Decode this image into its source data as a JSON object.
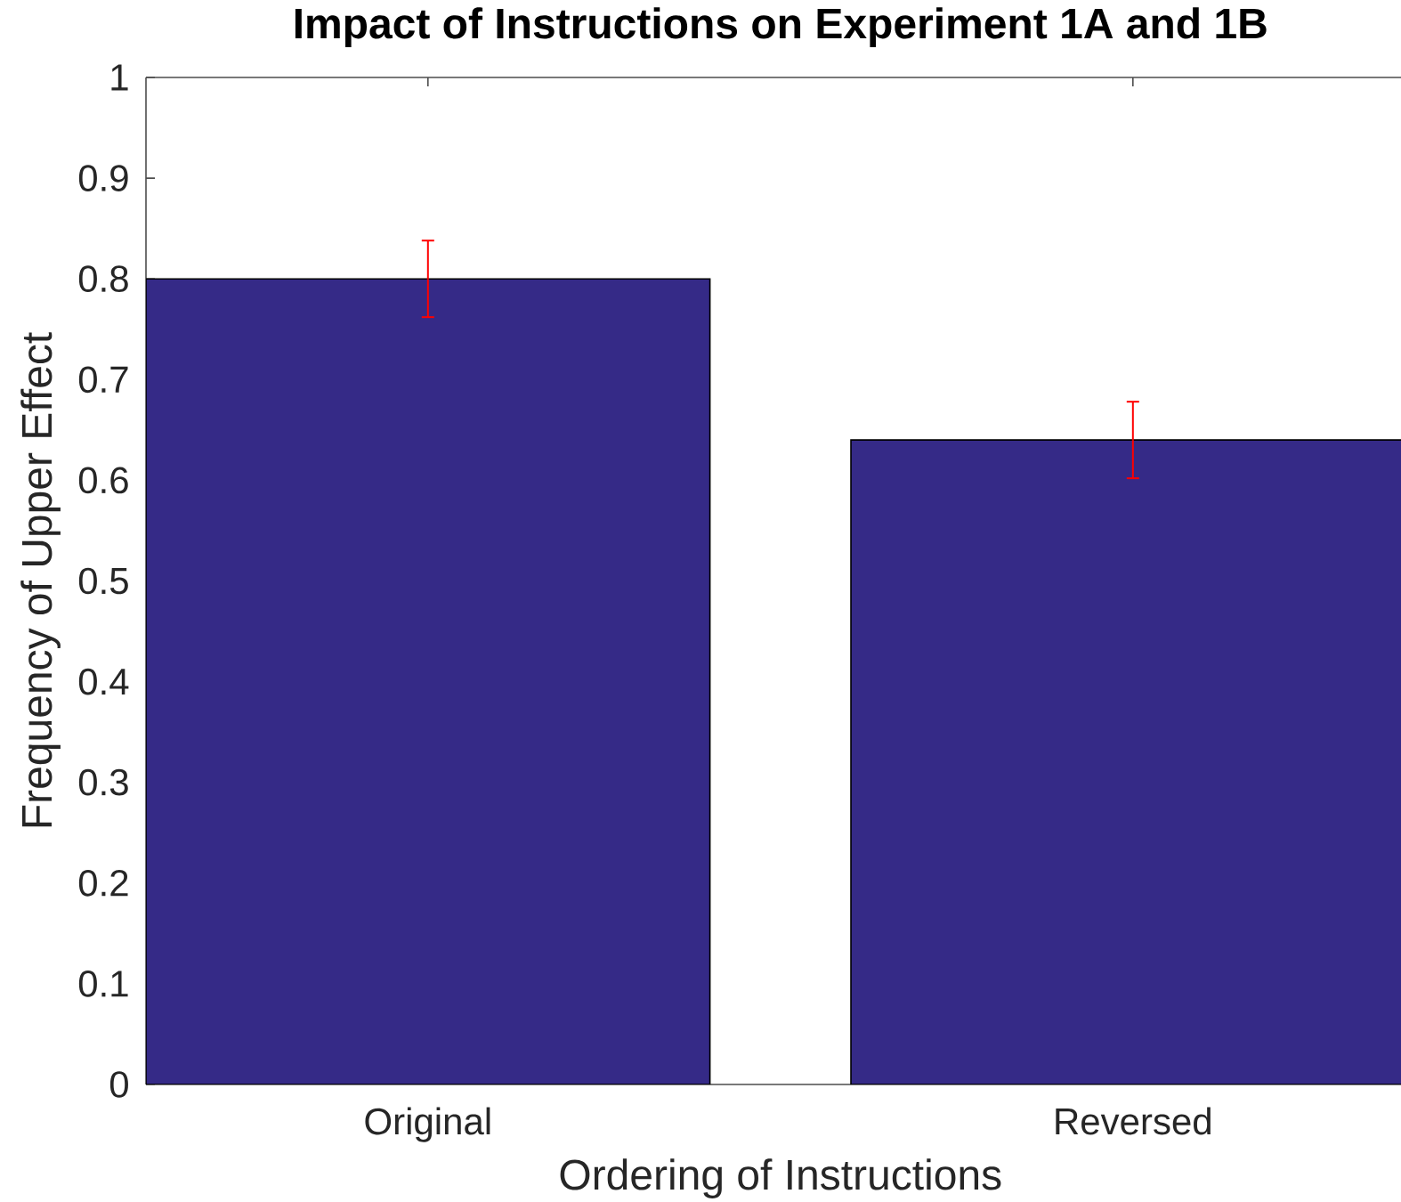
{
  "chart_data": {
    "type": "bar",
    "title": "Impact of Instructions on Experiment 1A and 1B",
    "xlabel": "Ordering of Instructions",
    "ylabel": "Frequency of Upper Effect",
    "categories": [
      "Original",
      "Reversed"
    ],
    "values": [
      0.8,
      0.64
    ],
    "errors": [
      0.038,
      0.038
    ],
    "color": "#352a87",
    "ylim": [
      0,
      1
    ],
    "yticks": [
      0,
      0.1,
      0.2,
      0.3,
      0.4,
      0.5,
      0.6,
      0.7,
      0.8,
      0.9,
      1
    ],
    "grid": false
  }
}
